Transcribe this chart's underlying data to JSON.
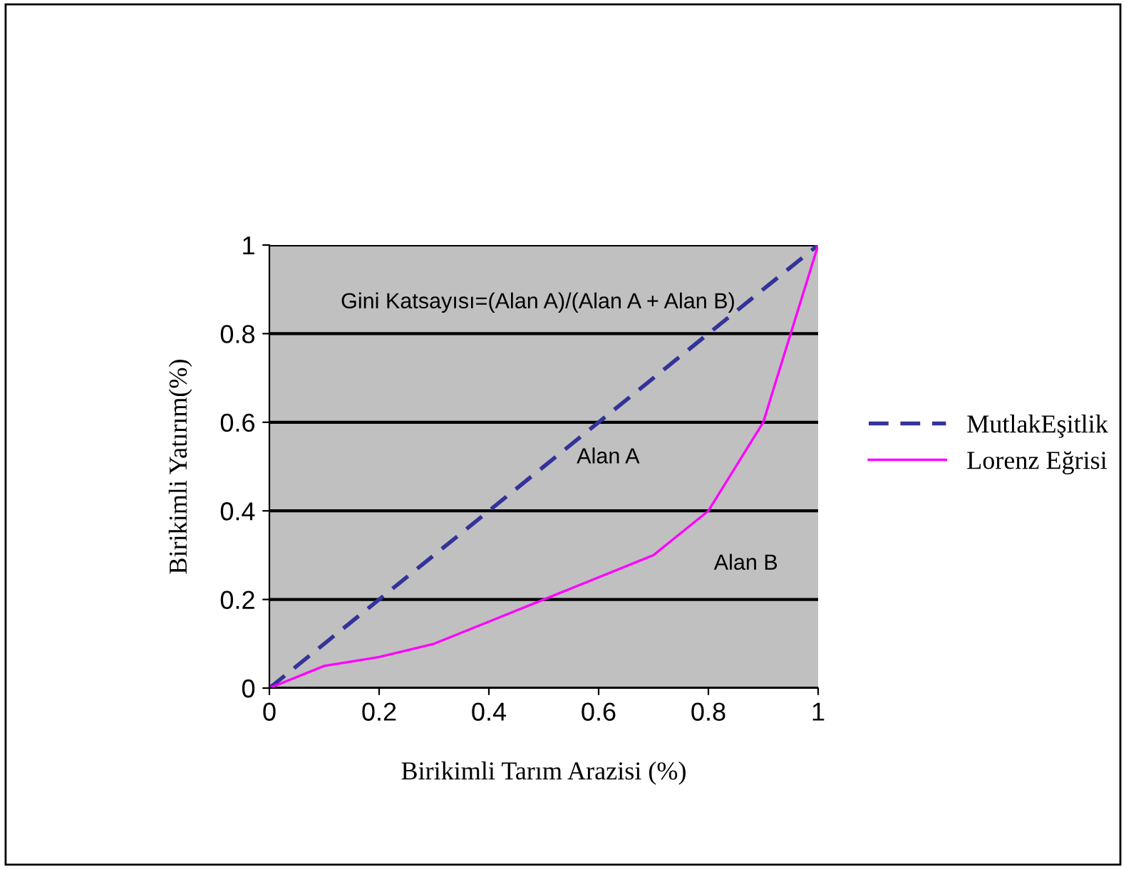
{
  "chart_data": {
    "type": "line",
    "xlabel": "Birikimli Tarım Arazisi (%)",
    "ylabel": "Birikimli Yatırım(%)",
    "series": [
      {
        "name": "MutlakEşitlik",
        "color": "#333399",
        "line_style": "dashed",
        "x": [
          0,
          0.1,
          0.2,
          0.3,
          0.4,
          0.5,
          0.6,
          0.7,
          0.8,
          0.9,
          1
        ],
        "values": [
          0,
          0.1,
          0.2,
          0.3,
          0.4,
          0.5,
          0.6,
          0.7,
          0.8,
          0.9,
          1
        ]
      },
      {
        "name": "Lorenz Eğrisi",
        "color": "#ff00ff",
        "line_style": "solid",
        "x": [
          0,
          0.1,
          0.2,
          0.3,
          0.4,
          0.5,
          0.6,
          0.7,
          0.8,
          0.9,
          1
        ],
        "values": [
          0,
          0.05,
          0.07,
          0.1,
          0.15,
          0.2,
          0.25,
          0.3,
          0.4,
          0.6,
          1
        ]
      }
    ],
    "annotations": [
      "Gini Katsayısı=(Alan A)/(Alan A + Alan B)",
      "Alan A",
      "Alan B"
    ],
    "xlim": [
      0,
      1
    ],
    "ylim": [
      0,
      1
    ],
    "xticks": [
      0,
      {
        "value": 0.2,
        "label": "0.2"
      },
      {
        "value": 0.4,
        "label": "0.4"
      },
      {
        "value": 0.6,
        "label": "0.6"
      },
      {
        "value": 0.8,
        "label": "0.8"
      },
      1
    ],
    "yticks": [
      0,
      {
        "value": 0.2,
        "label": "0.2"
      },
      {
        "value": 0.4,
        "label": "0.4"
      },
      {
        "value": 0.6,
        "label": "0.6"
      },
      {
        "value": 0.8,
        "label": "0.8"
      },
      1
    ],
    "grid": "y",
    "legend": "right",
    "marker": "none"
  }
}
